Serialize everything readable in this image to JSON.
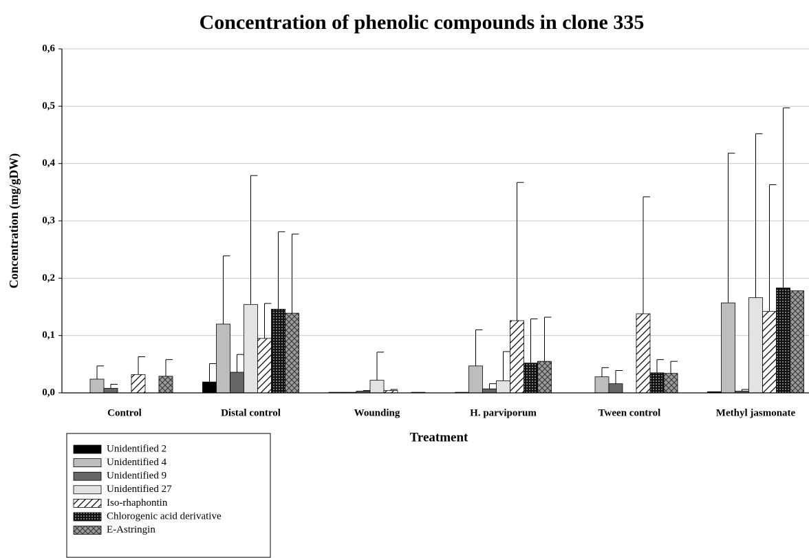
{
  "chart_data": {
    "type": "bar",
    "title": "Concentration of phenolic compounds in clone 335",
    "x_label": "Treatment",
    "y_label": "Concentration (mg/gDW)",
    "categories": [
      "Control",
      "Distal control",
      "Wounding",
      "H. parviporum",
      "Tween control",
      "Methyl jasmonate"
    ],
    "series": [
      {
        "name": "Unidentified 2",
        "color": "#000000",
        "pattern": "solid",
        "values": [
          0,
          0.019,
          0.001,
          0.001,
          0,
          0.002
        ],
        "errors": [
          null,
          0.032,
          null,
          null,
          null,
          null
        ]
      },
      {
        "name": "Unidentified 4",
        "color": "#bdbdbd",
        "pattern": "solid",
        "values": [
          0.024,
          0.12,
          0.001,
          0.047,
          0.028,
          0.157
        ],
        "errors": [
          0.023,
          0.119,
          null,
          0.063,
          0.016,
          0.261
        ]
      },
      {
        "name": "Unidentified 9",
        "color": "#666666",
        "pattern": "solid",
        "values": [
          0.008,
          0.036,
          0.003,
          0.007,
          0.016,
          0.003
        ],
        "errors": [
          0.007,
          0.031,
          0.001,
          0.009,
          0.023,
          0.003
        ]
      },
      {
        "name": "Unidentified 27",
        "color": "#e3e3e3",
        "pattern": "solid",
        "values": [
          0,
          0.154,
          0.022,
          0.021,
          0,
          0.166
        ],
        "errors": [
          null,
          0.225,
          0.049,
          0.051,
          null,
          0.286
        ]
      },
      {
        "name": "Iso-rhaphontin",
        "color": "#000000",
        "pattern": "diagonal",
        "values": [
          0.032,
          0.095,
          0.004,
          0.126,
          0.138,
          0.142
        ],
        "errors": [
          0.031,
          0.061,
          0.002,
          0.241,
          0.204,
          0.221
        ]
      },
      {
        "name": "Chlorogenic acid derivative",
        "color": "#222222",
        "pattern": "dots",
        "values": [
          0,
          0.146,
          0,
          0.052,
          0.035,
          0.183
        ],
        "errors": [
          null,
          0.135,
          null,
          0.077,
          0.023,
          0.314
        ]
      },
      {
        "name": "E-Astringin",
        "color": "#8c8c8c",
        "pattern": "crosshatch",
        "values": [
          0.029,
          0.139,
          0.001,
          0.055,
          0.034,
          0.178
        ],
        "errors": [
          0.029,
          0.138,
          null,
          0.077,
          0.021,
          null
        ]
      }
    ],
    "ylim": [
      0,
      0.6
    ],
    "yticks": [
      {
        "value": 0,
        "label": "0,0"
      },
      {
        "value": 0.1,
        "label": "0,1"
      },
      {
        "value": 0.2,
        "label": "0,2"
      },
      {
        "value": 0.3,
        "label": "0,3"
      },
      {
        "value": 0.4,
        "label": "0,4"
      },
      {
        "value": 0.5,
        "label": "0,5"
      },
      {
        "value": 0.6,
        "label": "0,6"
      }
    ],
    "grid": true,
    "legend": "bottom-left"
  }
}
